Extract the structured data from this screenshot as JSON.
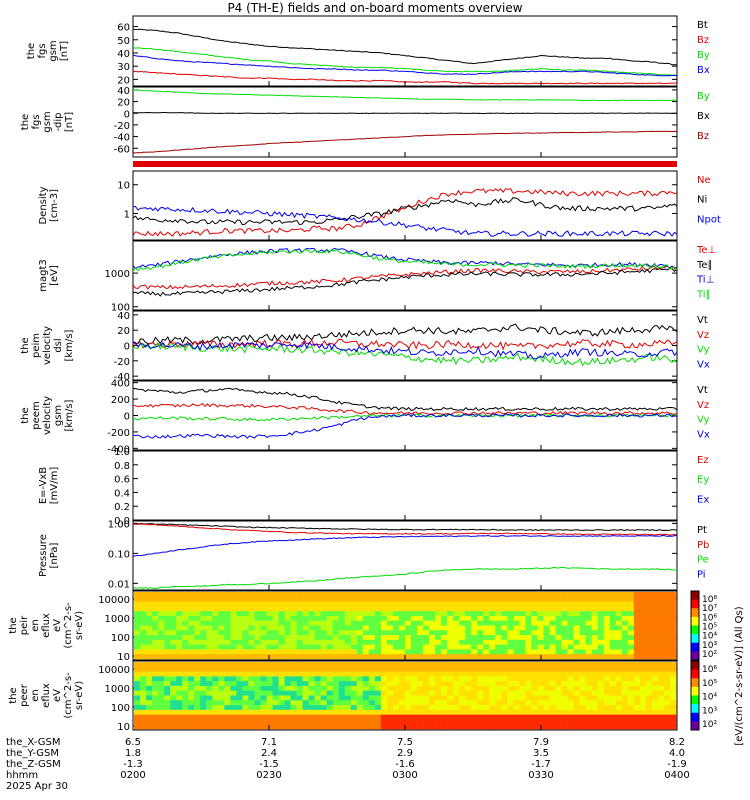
{
  "title": "P4 (TH-E) fields and on-board moments overview",
  "colors": {
    "black": "#000000",
    "red": "#e00000",
    "green": "#00dd00",
    "blue": "#0000ee",
    "dkred": "#a00000"
  },
  "chart_data": [
    {
      "type": "line",
      "panel": "fgs-gsm",
      "ylabel": [
        "the",
        "fgs",
        "gsm",
        "[nT]"
      ],
      "yticks": [
        "60",
        "50",
        "40",
        "30",
        "20"
      ],
      "ylim": [
        15,
        68
      ],
      "series": [
        {
          "name": "Bt",
          "color": "black",
          "values": [
            58,
            57,
            55,
            52,
            49,
            47,
            45,
            44,
            43,
            42,
            41,
            40,
            38,
            36,
            34,
            32,
            34,
            36,
            38,
            37,
            36,
            36,
            34,
            33,
            31
          ]
        },
        {
          "name": "Bz",
          "color": "red",
          "values": [
            26,
            25,
            24,
            23,
            22,
            21,
            21,
            20,
            20,
            19,
            19,
            19,
            18,
            18,
            18,
            17,
            17,
            17,
            17,
            17,
            17,
            17,
            17,
            17,
            17
          ]
        },
        {
          "name": "By",
          "color": "green",
          "values": [
            44,
            43,
            41,
            39,
            37,
            35,
            34,
            32,
            31,
            30,
            29,
            29,
            28,
            27,
            26,
            26,
            26,
            27,
            28,
            27,
            27,
            26,
            25,
            24,
            23
          ]
        },
        {
          "name": "Bx",
          "color": "blue",
          "values": [
            38,
            36,
            34,
            33,
            32,
            31,
            30,
            29,
            28,
            28,
            27,
            27,
            26,
            25,
            24,
            24,
            25,
            26,
            26,
            26,
            26,
            25,
            24,
            23,
            23
          ]
        }
      ]
    },
    {
      "type": "line",
      "panel": "fgs-gsm-dipole",
      "ylabel": [
        "the",
        "fgs",
        "gsm",
        "-dip",
        "[nT]"
      ],
      "yticks": [
        "40",
        "20",
        "0",
        "-20",
        "-40",
        "-60"
      ],
      "ylim": [
        -75,
        45
      ],
      "series": [
        {
          "name": "By",
          "color": "green",
          "values": [
            40,
            38,
            36,
            34,
            33,
            32,
            31,
            30,
            29,
            28,
            27,
            26,
            25,
            24,
            24,
            23,
            23,
            23,
            23,
            23,
            22,
            22,
            22,
            22,
            22
          ]
        },
        {
          "name": "Bx",
          "color": "black",
          "values": [
            1,
            1,
            1,
            0,
            0,
            0,
            0,
            0,
            0,
            0,
            0,
            0,
            0,
            0,
            0,
            0,
            0,
            0,
            0,
            0,
            0,
            0,
            0,
            0,
            0
          ]
        },
        {
          "name": "Bz",
          "color": "dkred",
          "values": [
            -68,
            -66,
            -63,
            -60,
            -57,
            -55,
            -52,
            -50,
            -48,
            -46,
            -44,
            -42,
            -40,
            -38,
            -37,
            -36,
            -35,
            -34,
            -34,
            -33,
            -33,
            -32,
            -32,
            -31,
            -31
          ]
        }
      ]
    },
    {
      "type": "line",
      "panel": "density",
      "log": true,
      "ylabel": [
        "Density",
        "[cm-3]"
      ],
      "yticks": [
        "10",
        "1"
      ],
      "ylim": [
        0.12,
        30
      ],
      "series": [
        {
          "name": "Ne",
          "color": "red",
          "values": [
            0.2,
            0.2,
            0.2,
            0.22,
            0.25,
            0.25,
            0.25,
            0.25,
            0.3,
            0.3,
            0.4,
            0.8,
            1.5,
            3,
            5,
            6,
            6,
            6,
            5.5,
            5,
            5,
            5,
            5,
            5,
            6
          ]
        },
        {
          "name": "Ni",
          "color": "black",
          "values": [
            0.7,
            0.6,
            0.6,
            0.5,
            0.5,
            0.5,
            0.5,
            0.5,
            0.5,
            0.6,
            0.8,
            1,
            1.5,
            2,
            3,
            2,
            2.5,
            3,
            2,
            1.5,
            1.5,
            1.5,
            1.5,
            1.5,
            2
          ]
        },
        {
          "name": "Npot",
          "color": "blue",
          "values": [
            1.5,
            1.5,
            1.4,
            1.3,
            1.2,
            1.1,
            1,
            0.9,
            0.8,
            0.7,
            0.6,
            0.5,
            0.4,
            0.3,
            0.25,
            0.2,
            0.2,
            0.2,
            0.2,
            0.2,
            0.2,
            0.2,
            0.2,
            0.2,
            0.2
          ]
        }
      ]
    },
    {
      "type": "line",
      "panel": "temperature",
      "log": true,
      "ylabel": [
        "magt3",
        "[eV]"
      ],
      "yticks": [
        "1000",
        "100"
      ],
      "ylim": [
        80,
        9000
      ],
      "series": [
        {
          "name": "Te⊥",
          "color": "red",
          "values": [
            400,
            380,
            380,
            400,
            420,
            450,
            500,
            520,
            550,
            600,
            700,
            800,
            900,
            1000,
            1100,
            1200,
            1200,
            1100,
            1100,
            1100,
            1100,
            1200,
            1300,
            1400,
            1500
          ]
        },
        {
          "name": "Te∥",
          "color": "black",
          "values": [
            250,
            240,
            240,
            260,
            280,
            300,
            330,
            360,
            400,
            450,
            550,
            650,
            750,
            850,
            900,
            950,
            950,
            900,
            900,
            900,
            950,
            1000,
            1100,
            1200,
            1300
          ]
        },
        {
          "name": "Ti⊥",
          "color": "blue",
          "values": [
            1500,
            1700,
            2200,
            2800,
            3500,
            4000,
            4500,
            4700,
            4800,
            4800,
            4000,
            3000,
            2500,
            2200,
            2000,
            2000,
            2000,
            1800,
            1800,
            1700,
            1700,
            1800,
            1800,
            1800,
            1500
          ]
        },
        {
          "name": "Ti∥",
          "color": "green",
          "values": [
            1300,
            1500,
            2000,
            2600,
            3200,
            3700,
            4200,
            4400,
            4500,
            4500,
            3500,
            2600,
            2200,
            2000,
            1800,
            1800,
            1800,
            1700,
            1700,
            1600,
            1600,
            1700,
            1700,
            1700,
            1400
          ]
        }
      ]
    },
    {
      "type": "line",
      "panel": "peim-velocity-dsl",
      "ylabel": [
        "the",
        "peim",
        "velocity",
        "dsl",
        "[km/s]"
      ],
      "yticks": [
        "40",
        "20",
        "0",
        "-20",
        "-40"
      ],
      "ylim": [
        -45,
        45
      ],
      "series": [
        {
          "name": "Vt",
          "color": "black",
          "values": [
            5,
            6,
            7,
            6,
            8,
            9,
            10,
            10,
            12,
            14,
            16,
            18,
            20,
            20,
            18,
            18,
            22,
            24,
            20,
            18,
            16,
            18,
            20,
            22,
            20
          ]
        },
        {
          "name": "Vz",
          "color": "red",
          "values": [
            1,
            1,
            2,
            2,
            1,
            2,
            3,
            2,
            3,
            4,
            2,
            2,
            0,
            0,
            2,
            1,
            0,
            -2,
            0,
            2,
            3,
            2,
            1,
            2,
            3
          ]
        },
        {
          "name": "Vy",
          "color": "green",
          "values": [
            0,
            -1,
            -2,
            -3,
            -4,
            -5,
            -4,
            -5,
            -6,
            -8,
            -10,
            -12,
            -15,
            -18,
            -20,
            -20,
            -18,
            -15,
            -18,
            -20,
            -22,
            -20,
            -18,
            -15,
            -20
          ]
        },
        {
          "name": "Vx",
          "color": "blue",
          "values": [
            0,
            1,
            0,
            -1,
            0,
            1,
            0,
            2,
            0,
            -2,
            -4,
            -6,
            -8,
            -10,
            -8,
            -6,
            -10,
            -12,
            -15,
            -10,
            -8,
            -10,
            -12,
            -10,
            -8
          ]
        }
      ]
    },
    {
      "type": "line",
      "panel": "peem-velocity-gsm",
      "ylabel": [
        "the",
        "peem",
        "velocity",
        "gsm",
        "[km/s]"
      ],
      "yticks": [
        "400",
        "200",
        "0",
        "-200",
        "-400"
      ],
      "ylim": [
        -420,
        420
      ],
      "series": [
        {
          "name": "Vt",
          "color": "black",
          "values": [
            320,
            300,
            280,
            300,
            320,
            300,
            280,
            260,
            220,
            160,
            120,
            90,
            80,
            80,
            80,
            80,
            80,
            80,
            80,
            80,
            80,
            80,
            80,
            80,
            80
          ]
        },
        {
          "name": "Vz",
          "color": "red",
          "values": [
            120,
            120,
            120,
            130,
            120,
            120,
            110,
            100,
            80,
            60,
            40,
            30,
            30,
            30,
            30,
            30,
            30,
            30,
            30,
            30,
            30,
            30,
            30,
            30,
            30
          ]
        },
        {
          "name": "Vy",
          "color": "green",
          "values": [
            -40,
            -30,
            -30,
            -40,
            -40,
            -50,
            -50,
            -40,
            -30,
            -20,
            -10,
            0,
            0,
            0,
            0,
            0,
            0,
            0,
            0,
            0,
            0,
            0,
            0,
            0,
            0
          ]
        },
        {
          "name": "Vx",
          "color": "blue",
          "values": [
            -250,
            -260,
            -250,
            -240,
            -250,
            -260,
            -250,
            -220,
            -180,
            -120,
            -40,
            -10,
            0,
            0,
            0,
            0,
            0,
            0,
            0,
            0,
            0,
            0,
            0,
            0,
            0
          ]
        }
      ]
    },
    {
      "type": "line",
      "panel": "E-field",
      "ylabel": [
        "E=-VxB",
        "[mV/m]"
      ],
      "yticks": [
        "1.0",
        "0.8",
        "0.6",
        "0.4",
        "0.2",
        "0.0"
      ],
      "ylim": [
        0,
        1
      ],
      "series": [
        {
          "name": "Ez",
          "color": "red",
          "values": []
        },
        {
          "name": "Ey",
          "color": "green",
          "values": []
        },
        {
          "name": "Ex",
          "color": "blue",
          "values": []
        }
      ]
    },
    {
      "type": "line",
      "panel": "pressure",
      "log": true,
      "ylabel": [
        "Pressure",
        "[nPa]"
      ],
      "yticks": [
        "1.00",
        "0.10",
        "0.01"
      ],
      "ylim": [
        0.006,
        1.2
      ],
      "series": [
        {
          "name": "Pt",
          "color": "black",
          "values": [
            0.98,
            0.95,
            0.9,
            0.85,
            0.8,
            0.75,
            0.72,
            0.7,
            0.68,
            0.66,
            0.64,
            0.63,
            0.62,
            0.62,
            0.62,
            0.62,
            0.61,
            0.6,
            0.6,
            0.6,
            0.6,
            0.6,
            0.6,
            0.6,
            0.6
          ]
        },
        {
          "name": "Pb",
          "color": "red",
          "values": [
            0.95,
            0.9,
            0.8,
            0.72,
            0.64,
            0.58,
            0.54,
            0.5,
            0.48,
            0.46,
            0.45,
            0.45,
            0.45,
            0.45,
            0.45,
            0.46,
            0.46,
            0.46,
            0.45,
            0.44,
            0.43,
            0.43,
            0.43,
            0.42,
            0.42
          ]
        },
        {
          "name": "Pe",
          "color": "green",
          "values": [
            0.007,
            0.007,
            0.008,
            0.008,
            0.009,
            0.009,
            0.01,
            0.011,
            0.012,
            0.014,
            0.016,
            0.018,
            0.02,
            0.025,
            0.028,
            0.03,
            0.03,
            0.03,
            0.032,
            0.033,
            0.032,
            0.03,
            0.03,
            0.03,
            0.028
          ]
        },
        {
          "name": "Pi",
          "color": "blue",
          "values": [
            0.08,
            0.1,
            0.13,
            0.16,
            0.2,
            0.23,
            0.26,
            0.28,
            0.3,
            0.32,
            0.34,
            0.35,
            0.36,
            0.37,
            0.37,
            0.38,
            0.38,
            0.38,
            0.38,
            0.38,
            0.38,
            0.38,
            0.38,
            0.38,
            0.38
          ]
        }
      ]
    },
    {
      "type": "heatmap",
      "panel": "peir-spectrogram",
      "ylabel": [
        "the",
        "peir",
        "en",
        "eflux",
        "eV",
        "(cm^2-s-",
        "sr-eV)"
      ],
      "yticks": [
        "10000",
        "1000",
        "100",
        "10"
      ]
    },
    {
      "type": "heatmap",
      "panel": "peer-spectrogram",
      "ylabel": [
        "the",
        "peer",
        "en",
        "eflux",
        "eV",
        "(cm^2-s-",
        "sr-eV)"
      ],
      "yticks": [
        "10000",
        "1000",
        "100",
        "10"
      ]
    }
  ],
  "colorbar": {
    "label": "[eV/(cm^2-s-sr-eV)] (All Qs)",
    "ticks1": [
      "10⁸",
      "10⁷",
      "10⁶",
      "10⁵",
      "10⁴",
      "10³",
      "10²"
    ],
    "ticks2": [
      "10⁶",
      "10⁵",
      "10⁴",
      "10³",
      "10²"
    ]
  },
  "xaxis": {
    "rows": [
      {
        "label": "the_X-GSM",
        "values": [
          "6.5",
          "7.1",
          "7.5",
          "7.9",
          "8.2"
        ]
      },
      {
        "label": "the_Y-GSM",
        "values": [
          "1.8",
          "2.4",
          "2.9",
          "3.5",
          "4.0"
        ]
      },
      {
        "label": "the_Z-GSM",
        "values": [
          "-1.3",
          "-1.5",
          "-1.6",
          "-1.7",
          "-1.9"
        ]
      },
      {
        "label": "hhmm",
        "values": [
          "0200",
          "0230",
          "0300",
          "0330",
          "0400"
        ]
      }
    ],
    "date": "2025 Apr 30"
  }
}
